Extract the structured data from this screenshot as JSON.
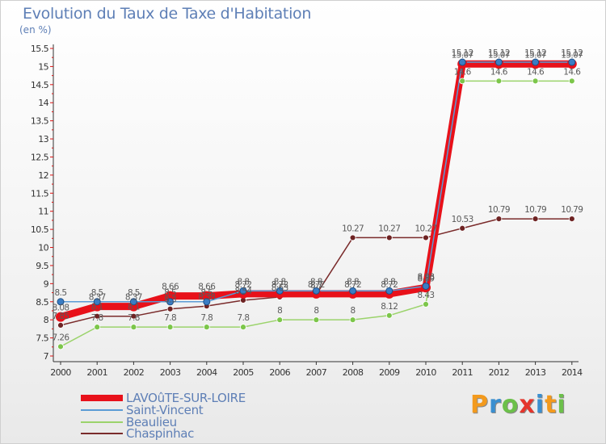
{
  "title": "Evolution du Taux de Taxe d'Habitation",
  "unit_label": "(en %)",
  "logo_text": "Proxiti",
  "chart_data": {
    "type": "line",
    "title": "Evolution du Taux de Taxe d'Habitation",
    "ylabel": "(en %)",
    "xlabel": "",
    "ylim": [
      7,
      15.5
    ],
    "yticks": [
      7,
      7.5,
      8,
      8.5,
      9,
      9.5,
      10,
      10.5,
      11,
      11.5,
      12,
      12.5,
      13,
      13.5,
      14,
      14.5,
      15,
      15.5
    ],
    "grid": false,
    "legend_position": "bottom-left",
    "categories": [
      "2000",
      "2001",
      "2002",
      "2003",
      "2004",
      "2005",
      "2006",
      "2007",
      "2008",
      "2009",
      "2010",
      "2011",
      "2012",
      "2013",
      "2014"
    ],
    "series": [
      {
        "name": "LAVOûTE-SUR-LOIRE",
        "color": "#e8111a",
        "marker_color": "#e8111a",
        "values": [
          8.08,
          8.37,
          8.37,
          8.66,
          8.66,
          8.72,
          8.72,
          8.72,
          8.72,
          8.72,
          8.89,
          15.07,
          15.07,
          15.07,
          15.07
        ],
        "labels": [
          "8.08",
          "8.37",
          "8.37",
          "8.66",
          "8.66",
          "8.72",
          "8.72",
          "8.72",
          "8.72",
          "8.72",
          "8.89",
          "15.07",
          "15.07",
          "15.07",
          "15.07"
        ]
      },
      {
        "name": "Saint-Vincent",
        "color": "#5b9bd5",
        "marker_color": "#3a7dc4",
        "values": [
          8.5,
          8.5,
          8.5,
          8.5,
          8.5,
          8.8,
          8.8,
          8.8,
          8.8,
          8.8,
          8.93,
          15.12,
          15.12,
          15.12,
          15.12
        ],
        "labels": [
          "8.5",
          "8.5",
          "8.5",
          "8.5",
          "8.5",
          "8.8",
          "8.8",
          "8.8",
          "8.8",
          "8.8",
          "8.93",
          "15.12",
          "15.12",
          "15.12",
          "15.12"
        ]
      },
      {
        "name": "Beaulieu",
        "color": "#9bd36b",
        "marker_color": "#7cc64a",
        "values": [
          7.26,
          7.8,
          7.8,
          7.8,
          7.8,
          7.8,
          8,
          8,
          8,
          8.12,
          8.43,
          14.6,
          14.6,
          14.6,
          14.6
        ],
        "labels": [
          "7.26",
          "7.8",
          "7.8",
          "7.8",
          "7.8",
          "7.8",
          "8",
          "8",
          "8",
          "8.12",
          "8.43",
          "14.6",
          "14.6",
          "14.6",
          "14.6"
        ]
      },
      {
        "name": "Chaspinhac",
        "color": "#7a2b2b",
        "marker_color": "#6e2323",
        "values": [
          7.85,
          8.1,
          8.1,
          8.3,
          8.38,
          8.54,
          8.63,
          8.7,
          10.27,
          10.27,
          10.27,
          10.53,
          10.79,
          10.79,
          10.79
        ],
        "labels": [
          "7.85",
          "8.1",
          "8.1",
          "8.3",
          "8.38",
          "8.54",
          "8.63",
          "8.7",
          "10.27",
          "10.27",
          "10.27",
          "10.53",
          "10.79",
          "10.79",
          "10.79"
        ]
      }
    ]
  }
}
